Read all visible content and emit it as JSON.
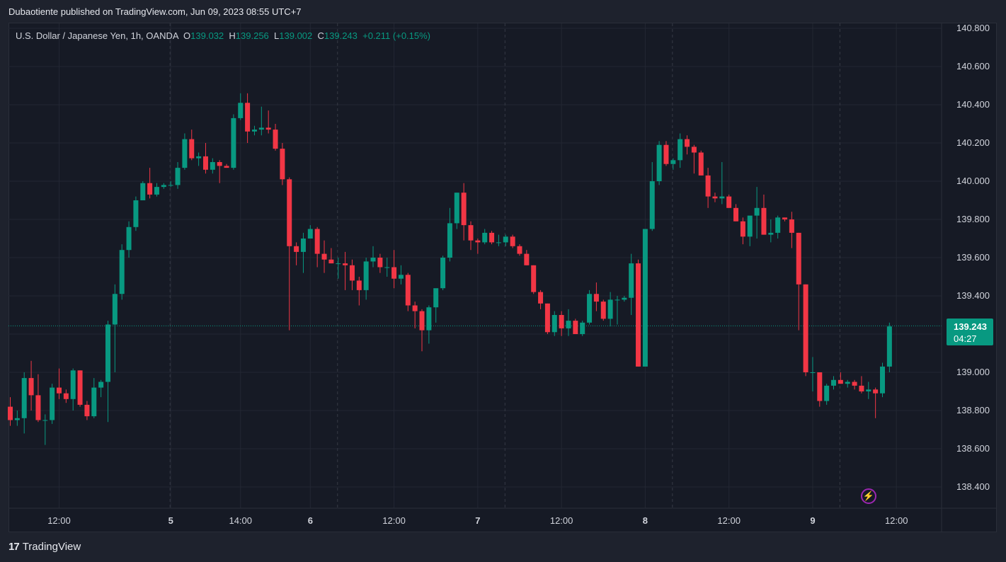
{
  "header": {
    "published": "Dubaotiente published on TradingView.com, Jun 09, 2023 08:55 UTC+7"
  },
  "legend": {
    "symbol": "U.S. Dollar / Japanese Yen, 1h, OANDA",
    "o_label": "O",
    "o_value": "139.032",
    "h_label": "H",
    "h_value": "139.256",
    "l_label": "L",
    "l_value": "139.002",
    "c_label": "C",
    "c_value": "139.243",
    "change": "+0.211 (+0.15%)"
  },
  "price_badge": {
    "price": "139.243",
    "countdown": "04:27"
  },
  "footer": {
    "brand": "TradingView"
  },
  "colors": {
    "up": "#089981",
    "down": "#f23645",
    "background": "#161a25",
    "grid": "#232733",
    "axis_text": "#d1d4dc",
    "badge": "#089981"
  },
  "icons": {
    "logo": "tradingview-logo-icon",
    "flash": "lightning-icon"
  },
  "chart_data": {
    "type": "candlestick",
    "ylim": [
      138.25,
      140.85
    ],
    "y_ticks": [
      "140.800",
      "140.600",
      "140.400",
      "140.200",
      "140.000",
      "139.800",
      "139.600",
      "139.400",
      "139.200",
      "139.000",
      "138.800",
      "138.600",
      "138.400"
    ],
    "y_tick_values": [
      140.8,
      140.6,
      140.4,
      140.2,
      140.0,
      139.8,
      139.6,
      139.4,
      139.2,
      139.0,
      138.8,
      138.6,
      138.4
    ],
    "x_ticks": [
      {
        "label": "12:00",
        "bar": 7
      },
      {
        "label": "5",
        "bar": 23
      },
      {
        "label": "14:00",
        "bar": 33
      },
      {
        "label": "6",
        "bar": 43
      },
      {
        "label": "12:00",
        "bar": 55
      },
      {
        "label": "7",
        "bar": 67
      },
      {
        "label": "12:00",
        "bar": 79
      },
      {
        "label": "8",
        "bar": 91
      },
      {
        "label": "12:00",
        "bar": 103
      },
      {
        "label": "9",
        "bar": 115
      },
      {
        "label": "12:00",
        "bar": 127
      }
    ],
    "last_price": 139.243,
    "candles": [
      [
        138.82,
        138.87,
        138.72,
        138.75
      ],
      [
        138.75,
        138.8,
        138.72,
        138.76
      ],
      [
        138.76,
        139.0,
        138.68,
        138.97
      ],
      [
        138.97,
        139.06,
        138.8,
        138.88
      ],
      [
        138.88,
        138.99,
        138.74,
        138.75
      ],
      [
        138.75,
        138.78,
        138.62,
        138.75
      ],
      [
        138.75,
        138.94,
        138.73,
        138.92
      ],
      [
        138.92,
        139.02,
        138.86,
        138.89
      ],
      [
        138.89,
        138.91,
        138.84,
        138.86
      ],
      [
        138.86,
        139.02,
        138.8,
        139.01
      ],
      [
        139.01,
        139.01,
        138.82,
        138.83
      ],
      [
        138.83,
        138.85,
        138.75,
        138.77
      ],
      [
        138.77,
        138.97,
        138.76,
        138.92
      ],
      [
        138.92,
        138.96,
        138.87,
        138.95
      ],
      [
        138.95,
        139.27,
        138.74,
        139.25
      ],
      [
        139.25,
        139.46,
        139.0,
        139.41
      ],
      [
        139.41,
        139.67,
        139.38,
        139.64
      ],
      [
        139.64,
        139.79,
        139.6,
        139.76
      ],
      [
        139.76,
        139.92,
        139.74,
        139.9
      ],
      [
        139.9,
        140.0,
        139.9,
        139.99
      ],
      [
        139.99,
        140.07,
        139.91,
        139.93
      ],
      [
        139.93,
        139.99,
        139.92,
        139.97
      ],
      [
        139.97,
        139.99,
        139.96,
        139.98
      ],
      [
        139.98,
        140.0,
        139.97,
        139.98
      ],
      [
        139.98,
        140.1,
        139.96,
        140.07
      ],
      [
        140.07,
        140.25,
        140.06,
        140.22
      ],
      [
        140.22,
        140.27,
        140.11,
        140.12
      ],
      [
        140.12,
        140.15,
        140.08,
        140.13
      ],
      [
        140.13,
        140.2,
        140.04,
        140.06
      ],
      [
        140.06,
        140.12,
        140.04,
        140.1
      ],
      [
        140.1,
        140.11,
        139.99,
        140.08
      ],
      [
        140.08,
        140.09,
        140.07,
        140.07
      ],
      [
        140.07,
        140.35,
        140.06,
        140.33
      ],
      [
        140.33,
        140.46,
        140.32,
        140.41
      ],
      [
        140.41,
        140.46,
        140.2,
        140.26
      ],
      [
        140.26,
        140.29,
        140.24,
        140.27
      ],
      [
        140.27,
        140.39,
        140.24,
        140.28
      ],
      [
        140.28,
        140.37,
        140.25,
        140.27
      ],
      [
        140.27,
        140.3,
        140.16,
        140.17
      ],
      [
        140.17,
        140.2,
        139.98,
        140.01
      ],
      [
        140.01,
        140.02,
        139.22,
        139.66
      ],
      [
        139.66,
        139.68,
        139.56,
        139.63
      ],
      [
        139.63,
        139.73,
        139.52,
        139.7
      ],
      [
        139.7,
        139.77,
        139.7,
        139.75
      ],
      [
        139.75,
        139.76,
        139.55,
        139.62
      ],
      [
        139.62,
        139.69,
        139.52,
        139.59
      ],
      [
        139.59,
        139.65,
        139.57,
        139.57
      ],
      [
        139.57,
        139.6,
        139.49,
        139.57
      ],
      [
        139.57,
        139.63,
        139.43,
        139.56
      ],
      [
        139.56,
        139.59,
        139.43,
        139.48
      ],
      [
        139.48,
        139.5,
        139.35,
        139.43
      ],
      [
        139.43,
        139.6,
        139.38,
        139.58
      ],
      [
        139.58,
        139.66,
        139.55,
        139.6
      ],
      [
        139.6,
        139.62,
        139.52,
        139.55
      ],
      [
        139.55,
        139.6,
        139.5,
        139.55
      ],
      [
        139.55,
        139.64,
        139.44,
        139.49
      ],
      [
        139.49,
        139.56,
        139.46,
        139.51
      ],
      [
        139.51,
        139.52,
        139.32,
        139.35
      ],
      [
        139.35,
        139.37,
        139.23,
        139.32
      ],
      [
        139.32,
        139.33,
        139.11,
        139.22
      ],
      [
        139.22,
        139.35,
        139.15,
        139.34
      ],
      [
        139.34,
        139.42,
        139.26,
        139.44
      ],
      [
        139.44,
        139.61,
        139.43,
        139.6
      ],
      [
        139.6,
        139.86,
        139.58,
        139.78
      ],
      [
        139.78,
        139.94,
        139.75,
        139.94
      ],
      [
        139.94,
        139.99,
        139.69,
        139.77
      ],
      [
        139.77,
        139.79,
        139.64,
        139.69
      ],
      [
        139.69,
        139.7,
        139.62,
        139.68
      ],
      [
        139.68,
        139.75,
        139.67,
        139.73
      ],
      [
        139.73,
        139.74,
        139.67,
        139.68
      ],
      [
        139.68,
        139.72,
        139.66,
        139.68
      ],
      [
        139.68,
        139.72,
        139.66,
        139.71
      ],
      [
        139.71,
        139.72,
        139.65,
        139.66
      ],
      [
        139.66,
        139.67,
        139.61,
        139.62
      ],
      [
        139.62,
        139.64,
        139.56,
        139.56
      ],
      [
        139.56,
        139.56,
        139.41,
        139.42
      ],
      [
        139.42,
        139.43,
        139.33,
        139.36
      ],
      [
        139.36,
        139.36,
        139.2,
        139.21
      ],
      [
        139.21,
        139.32,
        139.19,
        139.3
      ],
      [
        139.3,
        139.32,
        139.19,
        139.23
      ],
      [
        139.23,
        139.33,
        139.19,
        139.27
      ],
      [
        139.27,
        139.28,
        139.2,
        139.2
      ],
      [
        139.2,
        139.27,
        139.19,
        139.26
      ],
      [
        139.26,
        139.43,
        139.25,
        139.41
      ],
      [
        139.41,
        139.47,
        139.32,
        139.37
      ],
      [
        139.37,
        139.38,
        139.27,
        139.28
      ],
      [
        139.28,
        139.42,
        139.24,
        139.38
      ],
      [
        139.38,
        139.4,
        139.25,
        139.38
      ],
      [
        139.38,
        139.4,
        139.37,
        139.39
      ],
      [
        139.39,
        139.62,
        139.3,
        139.57
      ],
      [
        139.57,
        139.59,
        139.03,
        139.03
      ],
      [
        139.03,
        139.75,
        139.04,
        139.75
      ],
      [
        139.75,
        140.1,
        139.74,
        140.0
      ],
      [
        140.0,
        140.21,
        139.98,
        140.19
      ],
      [
        140.19,
        140.21,
        140.08,
        140.09
      ],
      [
        140.09,
        140.12,
        140.06,
        140.11
      ],
      [
        140.11,
        140.25,
        140.07,
        140.22
      ],
      [
        140.22,
        140.24,
        140.14,
        140.18
      ],
      [
        140.18,
        140.19,
        140.04,
        140.15
      ],
      [
        140.15,
        140.16,
        140.03,
        140.03
      ],
      [
        140.03,
        140.07,
        139.86,
        139.92
      ],
      [
        139.92,
        139.94,
        139.89,
        139.91
      ],
      [
        139.91,
        140.1,
        139.88,
        139.92
      ],
      [
        139.92,
        139.93,
        139.86,
        139.86
      ],
      [
        139.86,
        139.88,
        139.79,
        139.79
      ],
      [
        139.79,
        139.81,
        139.67,
        139.71
      ],
      [
        139.71,
        139.8,
        139.66,
        139.82
      ],
      [
        139.82,
        139.97,
        139.7,
        139.86
      ],
      [
        139.86,
        139.93,
        139.72,
        139.72
      ],
      [
        139.72,
        139.8,
        139.68,
        139.73
      ],
      [
        139.73,
        139.82,
        139.7,
        139.81
      ],
      [
        139.81,
        139.81,
        139.79,
        139.8
      ],
      [
        139.8,
        139.84,
        139.65,
        139.73
      ],
      [
        139.73,
        139.73,
        139.22,
        139.46
      ],
      [
        139.46,
        139.46,
        138.98,
        139.0
      ],
      [
        139.0,
        139.08,
        138.9,
        139.0
      ],
      [
        139.0,
        139.0,
        138.82,
        138.85
      ],
      [
        138.85,
        138.94,
        138.83,
        138.93
      ],
      [
        138.93,
        138.98,
        138.91,
        138.96
      ],
      [
        138.96,
        139.0,
        138.94,
        138.94
      ],
      [
        138.94,
        138.96,
        138.92,
        138.95
      ],
      [
        138.95,
        138.96,
        138.91,
        138.93
      ],
      [
        138.93,
        138.98,
        138.89,
        138.9
      ],
      [
        138.9,
        138.95,
        138.86,
        138.91
      ],
      [
        138.91,
        138.92,
        138.76,
        138.89
      ],
      [
        138.89,
        139.05,
        138.87,
        139.03
      ],
      [
        139.03,
        139.26,
        139.0,
        139.24
      ]
    ]
  }
}
